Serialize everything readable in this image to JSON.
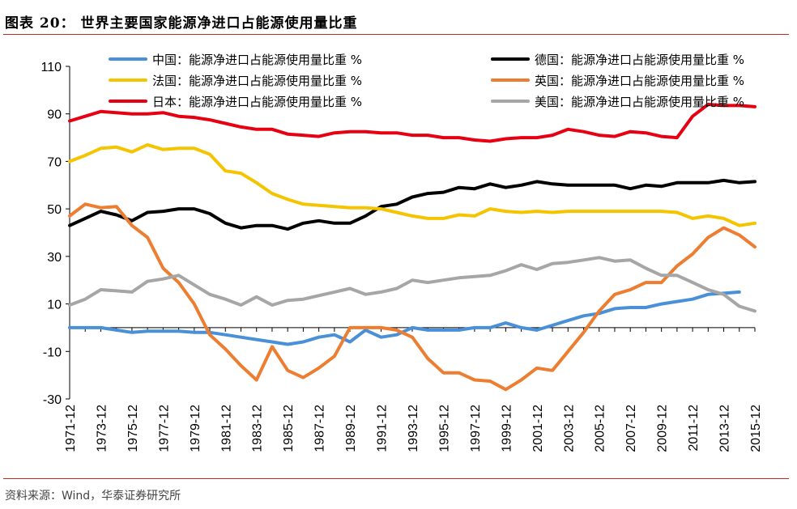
{
  "header": {
    "title": "图表 20：  世界主要国家能源净进口占能源使用量比重"
  },
  "footer": {
    "source": "资料来源：Wind，华泰证券研究所"
  },
  "chart_data": {
    "type": "line",
    "ylim": [
      -30,
      110
    ],
    "yticks": [
      -30,
      -10,
      10,
      30,
      50,
      70,
      90,
      110
    ],
    "x_tick_labels": [
      "1971-12",
      "1973-12",
      "1975-12",
      "1977-12",
      "1979-12",
      "1981-12",
      "1983-12",
      "1985-12",
      "1987-12",
      "1989-12",
      "1991-12",
      "1993-12",
      "1995-12",
      "1997-12",
      "1999-12",
      "2001-12",
      "2003-12",
      "2005-12",
      "2007-12",
      "2009-12",
      "2011-12",
      "2013-12",
      "2015-12"
    ],
    "x": [
      1971,
      1972,
      1973,
      1974,
      1975,
      1976,
      1977,
      1978,
      1979,
      1980,
      1981,
      1982,
      1983,
      1984,
      1985,
      1986,
      1987,
      1988,
      1989,
      1990,
      1991,
      1992,
      1993,
      1994,
      1995,
      1996,
      1997,
      1998,
      1999,
      2000,
      2001,
      2002,
      2003,
      2004,
      2005,
      2006,
      2007,
      2008,
      2009,
      2010,
      2011,
      2012,
      2013,
      2014,
      2015
    ],
    "grid": false,
    "legend_position": "top",
    "series": [
      {
        "name": "中国：能源净进口占能源使用量比重 %",
        "color": "#4a90d9",
        "values": [
          0,
          0,
          0,
          -1,
          -2,
          -1.5,
          -1.5,
          -1.5,
          -2,
          -2,
          -3,
          -4,
          -5,
          -6,
          -7,
          -6,
          -4,
          -3,
          -6,
          -1,
          -4,
          -3,
          0,
          -1,
          -1,
          -1,
          0,
          0,
          2,
          0,
          -1,
          1,
          3,
          5,
          6,
          8,
          8.5,
          8.5,
          10,
          11,
          12,
          14,
          14.5,
          15,
          null
        ]
      },
      {
        "name": "德国：能源净进口占能源使用量比重 %",
        "color": "#000000",
        "values": [
          43,
          46,
          49,
          47.5,
          45,
          48.5,
          49,
          50,
          50,
          48,
          44,
          42,
          43,
          43,
          41.5,
          44,
          45,
          44,
          44,
          47,
          51,
          52,
          55,
          56.5,
          57,
          59,
          58.5,
          60.5,
          59,
          60,
          61.5,
          60.5,
          60,
          60,
          60,
          60,
          58.5,
          60,
          59.5,
          61,
          61,
          61,
          62,
          61,
          61.5
        ]
      },
      {
        "name": "法国：能源净进口占能源使用量比重 %",
        "color": "#f5c400",
        "values": [
          70,
          72.5,
          75.5,
          76,
          74,
          77,
          75,
          75.5,
          75.5,
          73,
          66,
          65,
          61,
          56.5,
          54,
          52,
          51.5,
          51,
          50.5,
          50.5,
          50,
          48.5,
          47,
          46,
          46,
          47.5,
          47,
          50,
          49,
          48.5,
          49,
          48.5,
          49,
          49,
          49,
          49,
          49,
          49,
          49,
          48.5,
          46,
          47,
          46,
          43,
          44
        ]
      },
      {
        "name": "英国：能源净进口占能源使用量比重 %",
        "color": "#ed7d31",
        "values": [
          47,
          52,
          50.5,
          51,
          43,
          38,
          25,
          19,
          10,
          -3,
          -9,
          -16,
          -22,
          -8,
          -18,
          -21,
          -17,
          -12,
          0,
          0,
          0,
          -1,
          -4,
          -13,
          -19,
          -19,
          -22,
          -22.5,
          -26,
          -22,
          -17,
          -18,
          -10,
          -2,
          7,
          14,
          16,
          19,
          19,
          26,
          31,
          38,
          42,
          39,
          34
        ]
      },
      {
        "name": "日本：能源净进口占能源使用量比重 %",
        "color": "#e60012",
        "values": [
          87,
          89,
          91,
          90.5,
          90,
          90,
          90.5,
          89,
          88.5,
          87.5,
          86,
          84.5,
          83.5,
          83.5,
          81.5,
          81,
          80.5,
          82,
          82.5,
          82.5,
          82,
          82,
          81,
          81,
          80,
          80,
          79,
          78.5,
          79.5,
          80,
          80,
          81,
          83.5,
          82.5,
          81,
          80.5,
          82.5,
          82,
          80.5,
          80,
          89,
          94,
          93.5,
          93.5,
          93
        ]
      },
      {
        "name": "美国：能源净进口占能源使用量比重 %",
        "color": "#a6a6a6",
        "values": [
          9.5,
          12,
          16,
          15.5,
          15,
          19.5,
          20.5,
          22,
          18,
          14,
          12,
          9.5,
          13,
          9.5,
          11.5,
          12,
          13.5,
          15,
          16.5,
          14,
          15,
          16.5,
          20,
          19,
          20,
          21,
          21.5,
          22,
          24,
          26.5,
          24.5,
          27,
          27.5,
          28.5,
          29.5,
          28,
          28.5,
          25,
          22,
          22,
          19,
          16,
          14,
          9,
          7
        ]
      }
    ]
  }
}
